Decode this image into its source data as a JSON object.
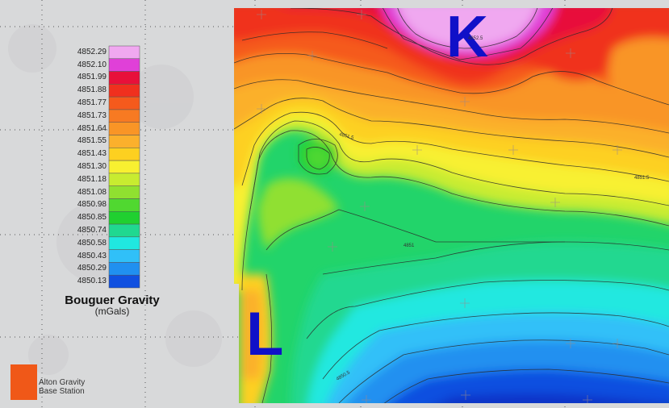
{
  "legend": {
    "title": "Bouguer Gravity",
    "units": "(mGals)",
    "ramp": [
      {
        "value": "4852.29",
        "color": "#f0a8f0"
      },
      {
        "value": "4852.10",
        "color": "#e040d8"
      },
      {
        "value": "4851.99",
        "color": "#e8103a"
      },
      {
        "value": "4851.88",
        "color": "#f0301e"
      },
      {
        "value": "4851.77",
        "color": "#f55a1c"
      },
      {
        "value": "4851.73",
        "color": "#f77a22"
      },
      {
        "value": "4851.64",
        "color": "#f99526"
      },
      {
        "value": "4851.55",
        "color": "#fbb02c"
      },
      {
        "value": "4851.43",
        "color": "#fdd020"
      },
      {
        "value": "4851.30",
        "color": "#f8f030"
      },
      {
        "value": "4851.18",
        "color": "#c8ec30"
      },
      {
        "value": "4851.08",
        "color": "#90e030"
      },
      {
        "value": "4850.98",
        "color": "#50d830"
      },
      {
        "value": "4850.85",
        "color": "#20d030"
      },
      {
        "value": "4850.74",
        "color": "#20d890"
      },
      {
        "value": "4850.58",
        "color": "#20e8e0"
      },
      {
        "value": "4850.43",
        "color": "#30c0f8"
      },
      {
        "value": "4850.29",
        "color": "#2090f0"
      },
      {
        "value": "4850.13",
        "color": "#1050e0"
      }
    ]
  },
  "base_station": {
    "label_line1": "Alton Gravity",
    "label_line2": "Base Station",
    "color": "#f05818"
  },
  "map_labels": {
    "k": "K",
    "l": "L"
  },
  "contour_labels": [
    "4851.5",
    "4850.5",
    "4851",
    "4851.5",
    "4852.5"
  ]
}
